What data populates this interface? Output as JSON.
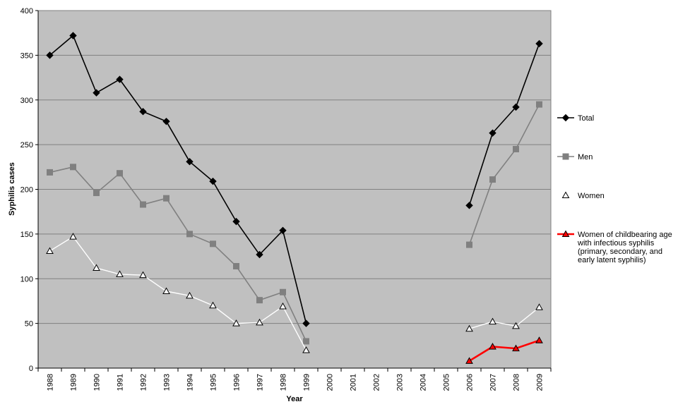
{
  "chart_data": {
    "type": "line",
    "title": "",
    "xlabel": "Year",
    "ylabel": "Syphilis cases",
    "ylim": [
      0,
      400
    ],
    "yticks": [
      0,
      50,
      100,
      150,
      200,
      250,
      300,
      350,
      400
    ],
    "grid": true,
    "legend_position": "right",
    "categories": [
      "1988",
      "1989",
      "1990",
      "1991",
      "1992",
      "1993",
      "1994",
      "1995",
      "1996",
      "1997",
      "1998",
      "1999",
      "2000",
      "2001",
      "2002",
      "2003",
      "2004",
      "2005",
      "2006",
      "2007",
      "2008",
      "2009"
    ],
    "series": [
      {
        "name": "Total",
        "color": "#000000",
        "marker": "diamond",
        "values": [
          350,
          372,
          308,
          323,
          287,
          276,
          231,
          209,
          164,
          127,
          154,
          50,
          null,
          null,
          null,
          null,
          null,
          null,
          182,
          263,
          292,
          363
        ]
      },
      {
        "name": "Men",
        "color": "#808080",
        "marker": "square",
        "values": [
          219,
          225,
          196,
          218,
          183,
          190,
          150,
          139,
          114,
          76,
          85,
          30,
          null,
          null,
          null,
          null,
          null,
          null,
          138,
          211,
          245,
          295
        ]
      },
      {
        "name": "Women",
        "color": "#ffffff",
        "marker": "triangle-open",
        "values": [
          131,
          147,
          112,
          105,
          104,
          86,
          81,
          70,
          50,
          51,
          69,
          20,
          null,
          null,
          null,
          null,
          null,
          null,
          44,
          52,
          47,
          68
        ]
      },
      {
        "name": "Women of childbearing age with infectious syphilis (primary, secondary, and early latent syphilis)",
        "legend_lines": [
          "Women of childbearing age",
          "with infectious syphilis",
          "(primary, secondary, and",
          "early latent syphilis)"
        ],
        "color": "#ff0000",
        "marker": "triangle-filled",
        "values": [
          null,
          null,
          null,
          null,
          null,
          null,
          null,
          null,
          null,
          null,
          null,
          null,
          null,
          null,
          null,
          null,
          null,
          null,
          8,
          24,
          22,
          31
        ]
      }
    ]
  }
}
